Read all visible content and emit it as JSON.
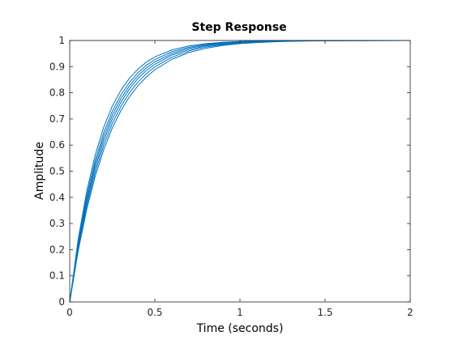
{
  "chart_data": {
    "type": "line",
    "title": "Step Response",
    "xlabel": "Time (seconds)",
    "ylabel": "Amplitude",
    "xlim": [
      0,
      2
    ],
    "ylim": [
      0,
      1
    ],
    "xticks": [
      0,
      0.5,
      1,
      1.5,
      2
    ],
    "xtick_labels": [
      "0",
      "0.5",
      "1",
      "1.5",
      "2"
    ],
    "yticks": [
      0,
      0.1,
      0.2,
      0.3,
      0.4,
      0.5,
      0.6,
      0.7,
      0.8,
      0.9,
      1
    ],
    "ytick_labels": [
      "0",
      "0.1",
      "0.2",
      "0.3",
      "0.4",
      "0.5",
      "0.6",
      "0.7",
      "0.8",
      "0.9",
      "1"
    ],
    "grid": false,
    "legend": "none",
    "line_color": "#0072BD",
    "reference_line": {
      "y": 1,
      "color": "#000000",
      "style": "dotted"
    },
    "series": [
      {
        "x": [
          0,
          0.05,
          0.1,
          0.15,
          0.2,
          0.25,
          0.3,
          0.35,
          0.4,
          0.45,
          0.5,
          0.6,
          0.7,
          0.8,
          0.9,
          1.0,
          1.1,
          1.2,
          1.3,
          1.5,
          2.0
        ],
        "y": [
          0,
          0.241,
          0.424,
          0.563,
          0.669,
          0.749,
          0.809,
          0.855,
          0.89,
          0.917,
          0.937,
          0.964,
          0.979,
          0.988,
          0.993,
          0.996,
          0.998,
          0.999,
          0.999,
          1.0,
          1.0
        ]
      },
      {
        "x": [
          0,
          0.05,
          0.1,
          0.15,
          0.2,
          0.25,
          0.3,
          0.35,
          0.4,
          0.45,
          0.5,
          0.6,
          0.7,
          0.8,
          0.9,
          1.0,
          1.1,
          1.2,
          1.3,
          1.5,
          2.0
        ],
        "y": [
          0,
          0.23,
          0.407,
          0.543,
          0.648,
          0.729,
          0.791,
          0.839,
          0.876,
          0.905,
          0.927,
          0.957,
          0.974,
          0.985,
          0.991,
          0.995,
          0.997,
          0.998,
          0.999,
          1.0,
          1.0
        ]
      },
      {
        "x": [
          0,
          0.05,
          0.1,
          0.15,
          0.2,
          0.25,
          0.3,
          0.35,
          0.4,
          0.45,
          0.5,
          0.6,
          0.7,
          0.8,
          0.9,
          1.0,
          1.1,
          1.2,
          1.3,
          1.5,
          2.0
        ],
        "y": [
          0,
          0.221,
          0.393,
          0.528,
          0.632,
          0.714,
          0.777,
          0.826,
          0.865,
          0.895,
          0.918,
          0.95,
          0.97,
          0.982,
          0.989,
          0.993,
          0.996,
          0.998,
          0.999,
          1.0,
          1.0
        ]
      },
      {
        "x": [
          0,
          0.05,
          0.1,
          0.15,
          0.2,
          0.25,
          0.3,
          0.35,
          0.4,
          0.45,
          0.5,
          0.6,
          0.7,
          0.8,
          0.9,
          1.0,
          1.1,
          1.2,
          1.3,
          1.5,
          2.0
        ],
        "y": [
          0,
          0.213,
          0.381,
          0.513,
          0.617,
          0.699,
          0.763,
          0.814,
          0.854,
          0.885,
          0.909,
          0.944,
          0.965,
          0.979,
          0.987,
          0.992,
          0.995,
          0.997,
          0.998,
          1.0,
          1.0
        ]
      },
      {
        "x": [
          0,
          0.05,
          0.1,
          0.15,
          0.2,
          0.25,
          0.3,
          0.35,
          0.4,
          0.45,
          0.5,
          0.6,
          0.7,
          0.8,
          0.9,
          1.0,
          1.1,
          1.2,
          1.3,
          1.5,
          2.0
        ],
        "y": [
          0,
          0.205,
          0.368,
          0.497,
          0.6,
          0.682,
          0.747,
          0.799,
          0.84,
          0.873,
          0.899,
          0.936,
          0.96,
          0.975,
          0.984,
          0.99,
          0.994,
          0.996,
          0.998,
          0.999,
          1.0
        ]
      },
      {
        "x": [
          0,
          0.05,
          0.1,
          0.15,
          0.2,
          0.25,
          0.3,
          0.35,
          0.4,
          0.45,
          0.5,
          0.6,
          0.7,
          0.8,
          0.9,
          1.0,
          1.1,
          1.2,
          1.3,
          1.5,
          2.0
        ],
        "y": [
          0,
          0.196,
          0.354,
          0.481,
          0.583,
          0.665,
          0.731,
          0.784,
          0.826,
          0.86,
          0.888,
          0.928,
          0.954,
          0.97,
          0.981,
          0.988,
          0.992,
          0.995,
          0.997,
          0.999,
          1.0
        ]
      }
    ]
  }
}
